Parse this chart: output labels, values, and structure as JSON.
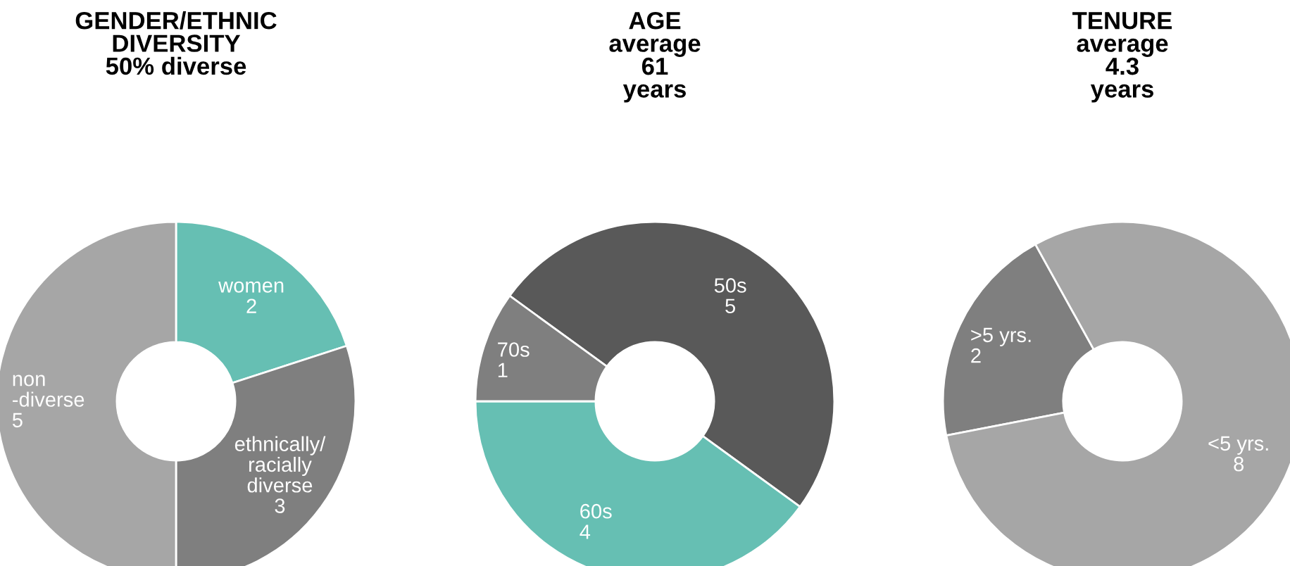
{
  "chart_data": [
    {
      "type": "donut",
      "title": "GENDER/ETHNIC\nDIVERSITY\n50% diverse",
      "categories": [
        "women",
        "ethnically/\nracially\ndiverse",
        "non\n-diverse"
      ],
      "values": [
        2,
        3,
        5
      ],
      "colors": [
        "#66bfb3",
        "#7f7f7f",
        "#a6a6a6"
      ],
      "data_labels": true,
      "legend": false
    },
    {
      "type": "donut",
      "title": "AGE\naverage\n61\nyears",
      "categories": [
        "50s",
        "60s",
        "70s"
      ],
      "values": [
        5,
        4,
        1
      ],
      "colors": [
        "#595959",
        "#66bfb3",
        "#7f7f7f"
      ],
      "data_labels": true,
      "legend": false
    },
    {
      "type": "donut",
      "title": "TENURE\naverage\n4.3\nyears",
      "categories": [
        ">5 yrs.",
        "<5 yrs."
      ],
      "values": [
        2,
        8
      ],
      "colors": [
        "#7f7f7f",
        "#a6a6a6"
      ],
      "data_labels": true,
      "legend": false
    }
  ]
}
